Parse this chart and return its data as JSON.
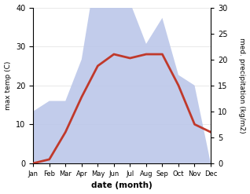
{
  "months": [
    "Jan",
    "Feb",
    "Mar",
    "Apr",
    "May",
    "Jun",
    "Jul",
    "Aug",
    "Sep",
    "Oct",
    "Nov",
    "Dec"
  ],
  "temperature": [
    0,
    1,
    8,
    17,
    25,
    28,
    27,
    28,
    28,
    20,
    10,
    8
  ],
  "precipitation": [
    10,
    12,
    12,
    20,
    39,
    34,
    31,
    23,
    28,
    17,
    15,
    0
  ],
  "temp_color": "#c0392b",
  "precip_fill_color": "#b8c4e8",
  "left_ylabel": "max temp (C)",
  "right_ylabel": "med. precipitation (kg/m2)",
  "xlabel": "date (month)",
  "ylim_left": [
    0,
    40
  ],
  "ylim_right": [
    0,
    30
  ],
  "left_ticks": [
    0,
    10,
    20,
    30,
    40
  ],
  "right_ticks": [
    0,
    5,
    10,
    15,
    20,
    25,
    30
  ],
  "bg_color": "#ffffff",
  "temp_linewidth": 2.0
}
